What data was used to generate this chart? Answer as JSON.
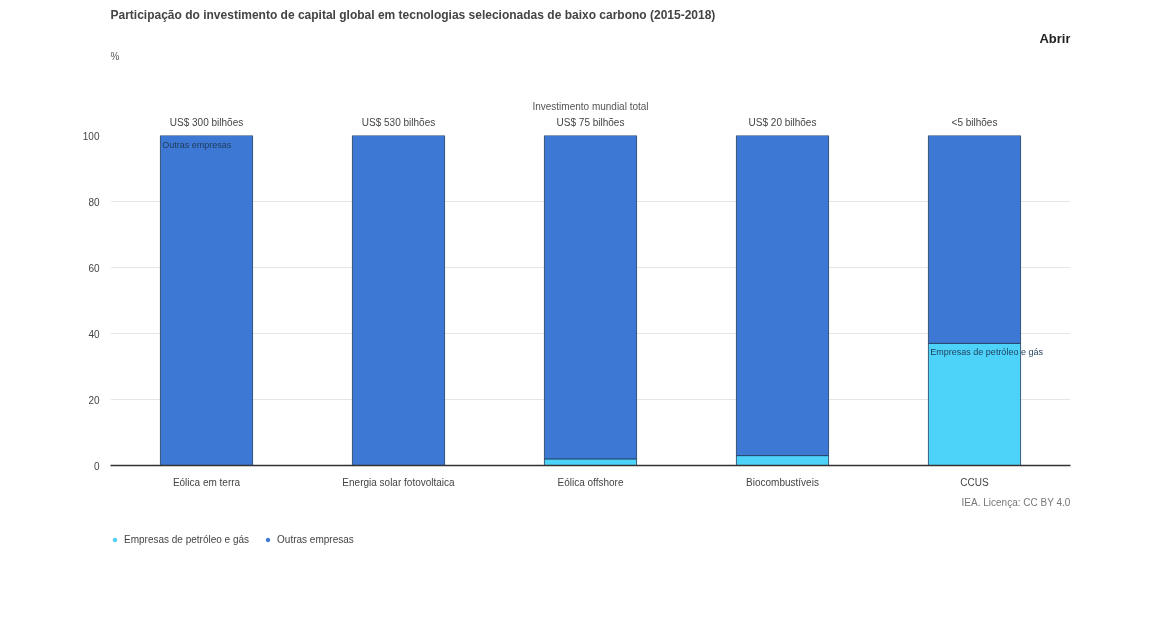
{
  "chart_data": {
    "type": "bar",
    "stacked": true,
    "title": "Participação do investimento de capital global em tecnologias selecionadas de baixo carbono (2015-2018)",
    "categories": [
      "Eólica em terra",
      "Energia solar fotovoltaica",
      "Eólica offshore",
      "Biocombustíveis",
      "CCUS"
    ],
    "series": [
      {
        "name": "Empresas de petróleo e gás",
        "color": "#4dd3f9",
        "values": [
          0,
          0,
          2,
          3,
          37
        ]
      },
      {
        "name": "Outras empresas",
        "color": "#3d78d4",
        "values": [
          100,
          100,
          98,
          97,
          63
        ]
      }
    ],
    "ylim": [
      0,
      100
    ],
    "yticks": [
      0,
      20,
      40,
      60,
      80,
      100
    ],
    "grid": "y",
    "legend": "bottom left",
    "annotations": [
      "Investimento mundial total",
      "US$ 300 bilhões",
      "US$ 530 bilhões",
      "US$ 75 bilhões",
      "US$ 20 bilhões",
      "<5 bilhões",
      "Abrir",
      "IEA. Licença: CC BY 4.0",
      "Outras empresas",
      "Empresas de petróleo e gás",
      "%"
    ]
  }
}
